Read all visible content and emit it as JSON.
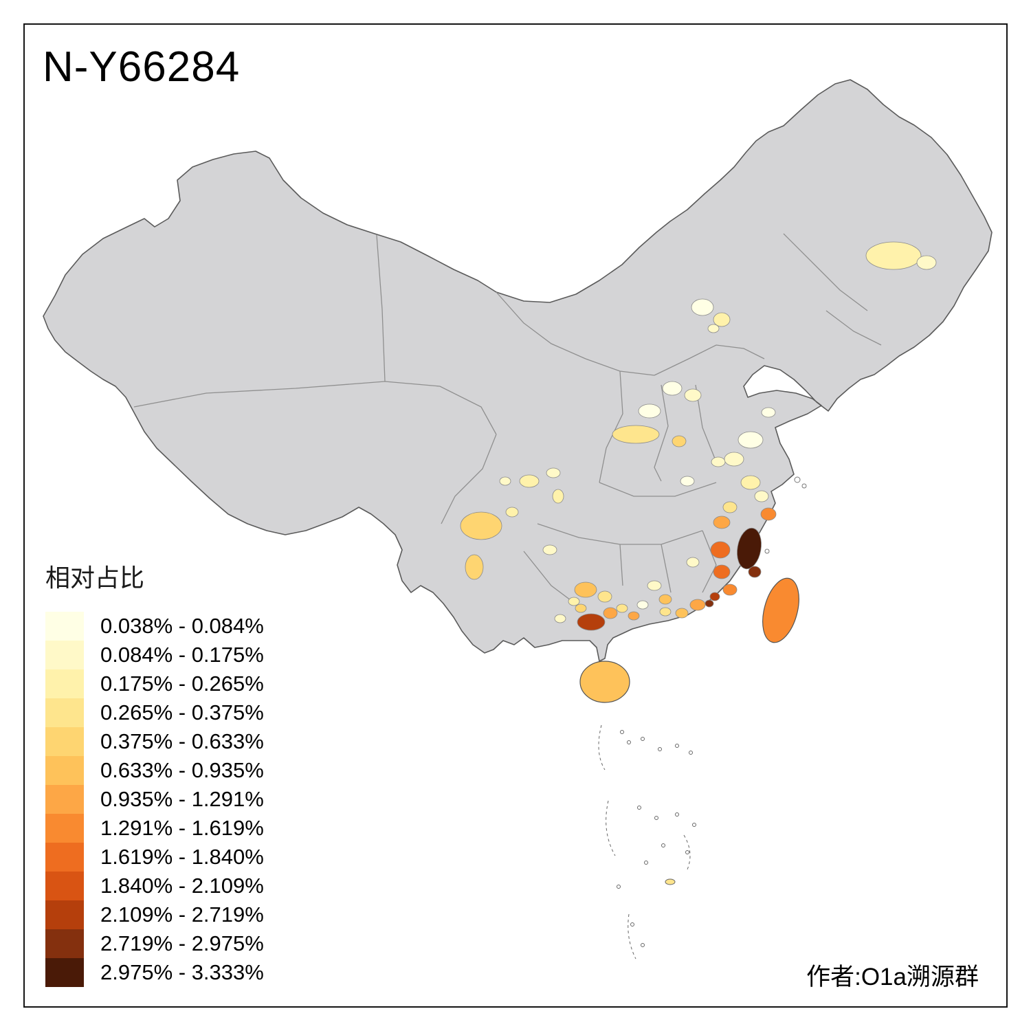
{
  "title": "N-Y66284",
  "attribution": "作者:O1a溯源群",
  "legend": {
    "title": "相对占比",
    "items": [
      {
        "label": "0.038% - 0.084%",
        "color": "#FFFFE5"
      },
      {
        "label": "0.084% - 0.175%",
        "color": "#FFF9C8"
      },
      {
        "label": "0.175% - 0.265%",
        "color": "#FFF2AB"
      },
      {
        "label": "0.265% - 0.375%",
        "color": "#FEE58D"
      },
      {
        "label": "0.375% - 0.633%",
        "color": "#FED571"
      },
      {
        "label": "0.633% - 0.935%",
        "color": "#FEC25A"
      },
      {
        "label": "0.935% - 1.291%",
        "color": "#FDA746"
      },
      {
        "label": "1.291% - 1.619%",
        "color": "#F98A30"
      },
      {
        "label": "1.619% - 1.840%",
        "color": "#EE6D20"
      },
      {
        "label": "1.840% - 2.109%",
        "color": "#D95413"
      },
      {
        "label": "2.109% - 2.719%",
        "color": "#B53F0C"
      },
      {
        "label": "2.719% - 2.975%",
        "color": "#84300E"
      },
      {
        "label": "2.975% - 3.333%",
        "color": "#4A1A07"
      }
    ]
  },
  "map": {
    "base_fill": "#D4D4D6",
    "border_color": "#8F8F8F",
    "outline_color": "#5A5A5A",
    "background": "#FFFFFF",
    "regions": {
      "heilongjiang-east-a": 2,
      "heilongjiang-east-b": 1,
      "beijing-a": 0,
      "beijing-b": 2,
      "hebei-s": 1,
      "shanxi-a": 0,
      "shaanxi-n": 1,
      "shaanxi-c": 0,
      "gansu-a": 3,
      "ningxia-a": 4,
      "henan-a": 1,
      "shandong-a": 0,
      "jiangsu-a": 0,
      "anhui-a": 1,
      "hubei-a": 0,
      "sichuan-a": 2,
      "sichuan-b": 1,
      "sichuan-c": 2,
      "sichuan-d": 1,
      "yunnan-a": 4,
      "yunnan-b": 4,
      "yunnan-c": 2,
      "guizhou-a": 1,
      "guizhou-b": 5,
      "guizhou-c": 3,
      "guizhou-d": 2,
      "hunan-a": 1,
      "hunan-b": 5,
      "hunan-c": 0,
      "jiangxi-a": 1,
      "zhejiang-a": 2,
      "zhejiang-b": 1,
      "zhejiang-c": 7,
      "zhejiang-d": 3,
      "fujian-north": 6,
      "fujian-core": 12,
      "fujian-south-dark": 11,
      "fujian-west": 8,
      "fujian-southwest": 8,
      "fujian-south": 7,
      "fujian-xiamen": 10,
      "guangdong-east": 6,
      "guangdong-chaoshan": 11,
      "guangdong-mid": 5,
      "guangdong-pearl": 3,
      "guangxi-red": 10,
      "guangxi-a": 6,
      "guangxi-b": 3,
      "guangxi-c": 6,
      "guangxi-d": 4,
      "guangxi-e": 1,
      "hainan": 5,
      "taiwan": 7,
      "sea-islet-colored": 3
    }
  }
}
